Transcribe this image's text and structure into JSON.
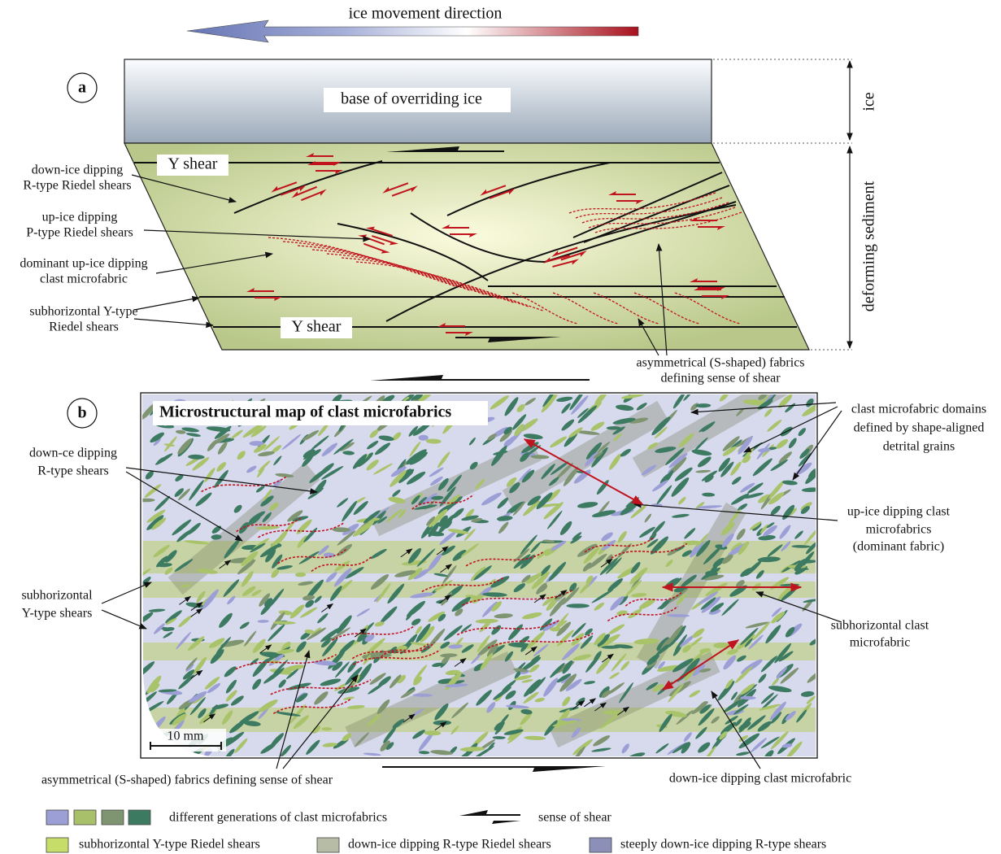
{
  "header": {
    "title": "ice movement direction"
  },
  "panel_a": {
    "label": "a",
    "ice_label": "base of overriding ice",
    "side_labels": {
      "ice": "ice",
      "sediment": "deforming sediment"
    },
    "y_shear": [
      "Y shear",
      "Y shear"
    ],
    "annotations": [
      {
        "lines": [
          "down-ice dipping",
          "R-type Riedel shears"
        ]
      },
      {
        "lines": [
          "up-ice dipping",
          "P-type Riedel shears"
        ]
      },
      {
        "lines": [
          "dominant up-ice dipping",
          "clast microfabric"
        ]
      },
      {
        "lines": [
          "subhorizontal Y-type",
          "Riedel shears"
        ]
      },
      {
        "lines": [
          "asymmetrical (S-shaped) fabrics",
          "defining sense of shear"
        ]
      }
    ]
  },
  "panel_b": {
    "label": "b",
    "title": "Microstructural map of clast microfabrics",
    "scale": "10 mm",
    "annotations": [
      {
        "lines": [
          "down-ce dipping",
          "R-type shears"
        ]
      },
      {
        "lines": [
          "subhorizontal",
          "Y-type shears"
        ]
      },
      {
        "lines": [
          "clast microfabric domains",
          "defined by shape-aligned",
          "detrital grains"
        ]
      },
      {
        "lines": [
          "up-ice dipping clast",
          "microfabrics",
          "(dominant fabric)"
        ]
      },
      {
        "lines": [
          "subhorizontal clast",
          "microfabric"
        ]
      },
      {
        "lines": [
          "down-ice dipping clast microfabric"
        ]
      },
      {
        "lines": [
          "asymmetrical (S-shaped) fabrics defining sense of shear"
        ]
      }
    ]
  },
  "legend": {
    "items": [
      "different generations of clast microfabrics",
      "sense of shear",
      "subhorizontal Y-type Riedel shears",
      "down-ice dipping R-type Riedel shears",
      "steeply down-ice dipping R-type shears"
    ]
  }
}
